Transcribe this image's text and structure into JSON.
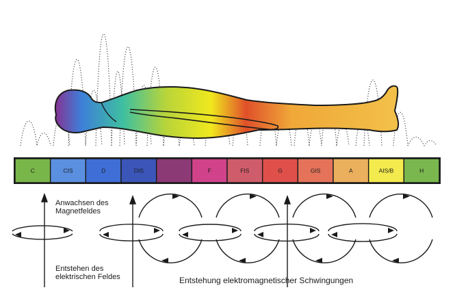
{
  "scale": {
    "keys": [
      {
        "label": "C",
        "color": "#79b64a"
      },
      {
        "label": "CIS",
        "color": "#5b8fe0"
      },
      {
        "label": "D",
        "color": "#3f6fd6"
      },
      {
        "label": "DIS",
        "color": "#3b56b8"
      },
      {
        "label": "",
        "color": "#8c3a76"
      },
      {
        "label": "F",
        "color": "#d0438b"
      },
      {
        "label": "FIS",
        "color": "#cf5c6b"
      },
      {
        "label": "G",
        "color": "#e0504b"
      },
      {
        "label": "GIS",
        "color": "#e4735a"
      },
      {
        "label": "A",
        "color": "#ebb05d"
      },
      {
        "label": "AIS/B",
        "color": "#f3ea4e"
      },
      {
        "label": "H",
        "color": "#7ab84f"
      }
    ]
  },
  "labels": {
    "magnetic_field": "Anwachsen des Magnetfeldes",
    "electric_field": "Entstehen des elektrischen Feldes",
    "em_oscillation": "Entstehung elektromagnetischer Schwingungen"
  },
  "colors": {
    "body_gradient": [
      "#8b2d8f",
      "#3d7fd8",
      "#3fc0a0",
      "#b8d43a",
      "#f0e81e",
      "#e0502a",
      "#f0a838",
      "#f2c24a"
    ],
    "outline": "#1a1a1a",
    "dotted_wave": "#333333"
  }
}
